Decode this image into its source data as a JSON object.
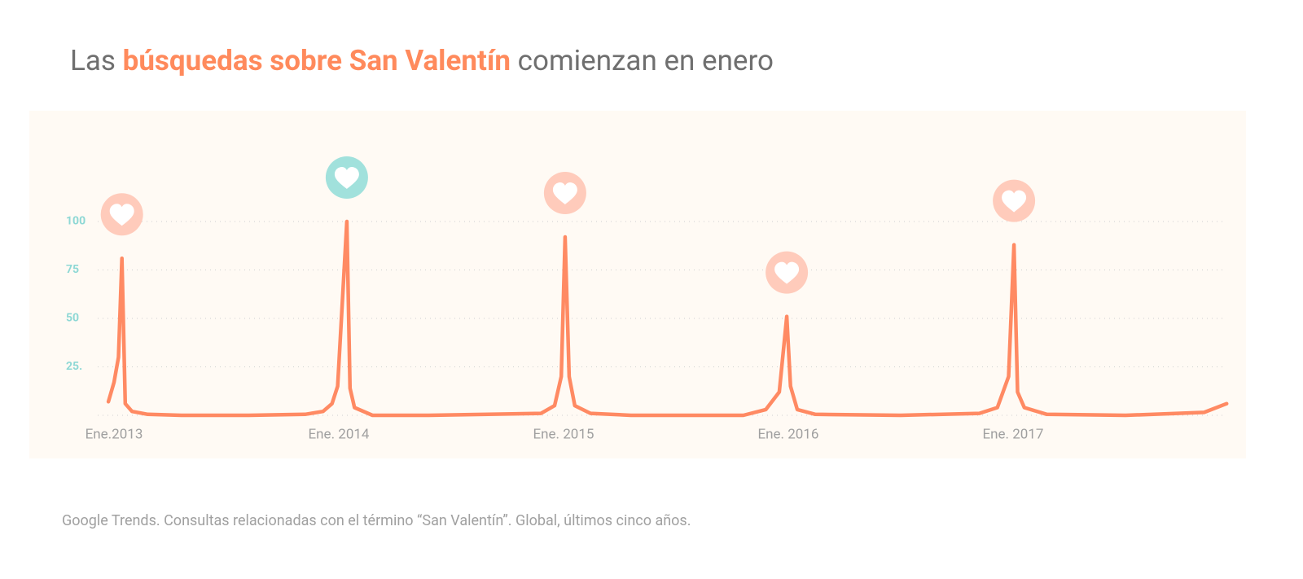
{
  "chart_data": {
    "type": "line",
    "title": {
      "before": "Las ",
      "highlight": "búsquedas sobre San Valentín",
      "after": " comienzan en enero"
    },
    "source": "Google Trends. Consultas relacionadas con el término “San Valentín”. Global, últimos cinco años.",
    "x": [
      2012.975,
      2013.0,
      2013.02,
      2013.035,
      2013.05,
      2013.08,
      2013.15,
      2013.3,
      2013.6,
      2013.85,
      2013.93,
      2013.97,
      2013.995,
      2014.036,
      2014.05,
      2014.07,
      2014.15,
      2014.4,
      2014.9,
      2014.96,
      2014.99,
      2015.007,
      2015.025,
      2015.05,
      2015.12,
      2015.3,
      2015.8,
      2015.9,
      2015.96,
      2015.993,
      2016.01,
      2016.04,
      2016.12,
      2016.5,
      2016.85,
      2016.93,
      2016.98,
      2017.004,
      2017.02,
      2017.05,
      2017.15,
      2017.5,
      2017.85,
      2017.95
    ],
    "series": [
      {
        "name": "San Valentín",
        "color": "#ff8a63",
        "values": [
          7,
          17,
          30,
          81,
          6,
          2,
          0.5,
          0,
          0,
          0.5,
          2,
          6,
          15,
          100,
          14,
          4,
          0,
          0,
          1,
          5,
          20,
          92,
          20,
          5,
          1,
          0,
          0,
          3,
          12,
          51,
          15,
          3,
          0.5,
          0,
          1,
          4,
          20,
          88,
          12,
          4,
          0.5,
          0,
          1.5,
          6
        ]
      }
    ],
    "xlim": [
      2012.95,
      2017.97
    ],
    "xticks": [
      {
        "value": 2013,
        "label": "Ene.2013"
      },
      {
        "value": 2014,
        "label": "Ene. 2014"
      },
      {
        "value": 2015,
        "label": "Ene. 2015"
      },
      {
        "value": 2016,
        "label": "Ene. 2016"
      },
      {
        "value": 2017,
        "label": "Ene. 2017"
      }
    ],
    "ylim": [
      0,
      100
    ],
    "yticks": [
      {
        "value": 25,
        "label": "25."
      },
      50,
      75,
      100
    ],
    "grid": true,
    "heart_colors": [
      "#ffcbbb",
      "#a1e1dc",
      "#ffcbbb",
      "#ffcbbb",
      "#ffcbbb"
    ]
  }
}
